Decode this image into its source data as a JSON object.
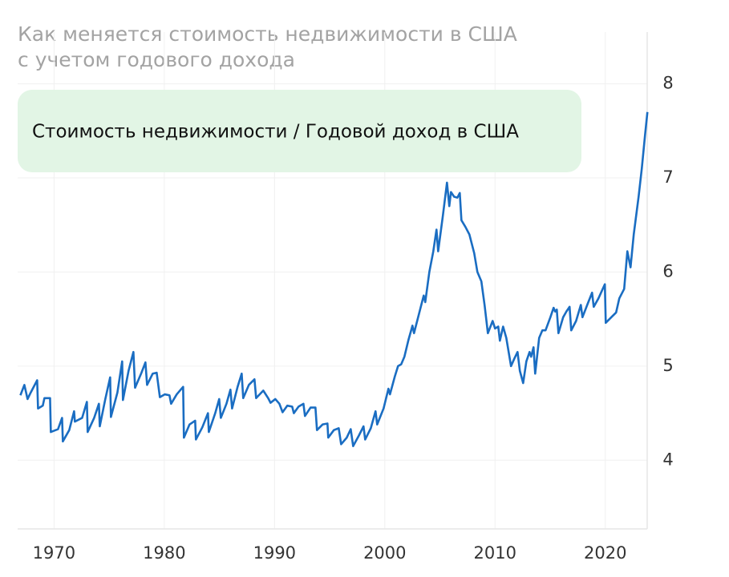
{
  "chart_data": {
    "type": "line",
    "title": "Как меняется стоимость недвижимости в США",
    "subtitle": "с учетом годового дохода",
    "x": [
      1966.95,
      1967.31,
      1967.6,
      1967.89,
      1968.47,
      1968.55,
      1968.98,
      1969.13,
      1969.64,
      1969.71,
      1970.36,
      1970.73,
      1970.8,
      1971.38,
      1971.82,
      1971.89,
      1972.55,
      1972.98,
      1973.05,
      1973.64,
      1974.07,
      1974.15,
      1974.65,
      1975.09,
      1975.16,
      1975.75,
      1976.18,
      1976.25,
      1976.76,
      1977.2,
      1977.35,
      1977.93,
      1978.29,
      1978.44,
      1978.95,
      1979.31,
      1979.6,
      1980.04,
      1980.47,
      1980.62,
      1981.13,
      1981.71,
      1981.78,
      1982.29,
      1982.8,
      1982.87,
      1983.45,
      1983.96,
      1984.04,
      1984.62,
      1984.98,
      1985.13,
      1985.64,
      1986.0,
      1986.15,
      1986.65,
      1987.02,
      1987.16,
      1987.67,
      1988.18,
      1988.33,
      1988.98,
      1989.42,
      1989.64,
      1990.07,
      1990.44,
      1990.73,
      1991.16,
      1991.6,
      1991.75,
      1992.18,
      1992.62,
      1992.76,
      1993.27,
      1993.71,
      1993.85,
      1994.36,
      1994.8,
      1994.87,
      1995.38,
      1995.82,
      1996.04,
      1996.55,
      1996.91,
      1997.13,
      1997.64,
      1998.07,
      1998.22,
      1998.73,
      1999.16,
      1999.31,
      1999.89,
      2000.33,
      2000.47,
      2000.91,
      2001.2,
      2001.49,
      2001.78,
      2002.15,
      2002.51,
      2002.65,
      2003.09,
      2003.53,
      2003.67,
      2004.04,
      2004.4,
      2004.69,
      2004.84,
      2005.27,
      2005.64,
      2005.85,
      2006.0,
      2006.29,
      2006.58,
      2006.8,
      2006.95,
      2007.31,
      2007.67,
      2008.11,
      2008.4,
      2008.76,
      2009.05,
      2009.35,
      2009.78,
      2010.0,
      2010.29,
      2010.44,
      2010.73,
      2011.02,
      2011.45,
      2011.75,
      2012.04,
      2012.25,
      2012.55,
      2012.84,
      2013.13,
      2013.27,
      2013.49,
      2013.64,
      2014.0,
      2014.29,
      2014.58,
      2015.02,
      2015.31,
      2015.45,
      2015.6,
      2015.75,
      2016.18,
      2016.47,
      2016.76,
      2016.91,
      2017.35,
      2017.78,
      2017.93,
      2018.36,
      2018.8,
      2018.95,
      2019.38,
      2019.96,
      2020.04,
      2020.55,
      2020.98,
      2021.27,
      2021.71,
      2022.0,
      2022.29,
      2022.58,
      2023.02,
      2023.31,
      2023.6,
      2023.82
    ],
    "series": [
      {
        "name": "Стоимость недвижимости /  Годовой доход в США",
        "color": "#1a6dc2",
        "values": [
          4.69,
          4.8,
          4.65,
          4.72,
          4.85,
          4.55,
          4.58,
          4.66,
          4.66,
          4.3,
          4.33,
          4.45,
          4.2,
          4.32,
          4.52,
          4.41,
          4.45,
          4.62,
          4.3,
          4.45,
          4.6,
          4.36,
          4.65,
          4.88,
          4.46,
          4.72,
          5.05,
          4.64,
          4.95,
          5.15,
          4.77,
          4.93,
          5.04,
          4.8,
          4.92,
          4.93,
          4.67,
          4.7,
          4.69,
          4.6,
          4.7,
          4.78,
          4.24,
          4.38,
          4.42,
          4.22,
          4.35,
          4.5,
          4.3,
          4.5,
          4.65,
          4.45,
          4.6,
          4.75,
          4.55,
          4.78,
          4.92,
          4.66,
          4.8,
          4.86,
          4.66,
          4.74,
          4.66,
          4.61,
          4.65,
          4.6,
          4.51,
          4.58,
          4.57,
          4.5,
          4.57,
          4.6,
          4.47,
          4.56,
          4.56,
          4.32,
          4.38,
          4.39,
          4.24,
          4.32,
          4.34,
          4.17,
          4.24,
          4.33,
          4.15,
          4.26,
          4.36,
          4.22,
          4.34,
          4.52,
          4.38,
          4.55,
          4.76,
          4.7,
          4.89,
          5.0,
          5.02,
          5.1,
          5.28,
          5.43,
          5.35,
          5.55,
          5.75,
          5.68,
          6.0,
          6.22,
          6.45,
          6.22,
          6.6,
          6.95,
          6.7,
          6.85,
          6.8,
          6.79,
          6.84,
          6.55,
          6.48,
          6.4,
          6.2,
          6.0,
          5.9,
          5.65,
          5.35,
          5.48,
          5.4,
          5.42,
          5.27,
          5.42,
          5.3,
          5.0,
          5.08,
          5.15,
          4.95,
          4.82,
          5.05,
          5.15,
          5.1,
          5.2,
          4.92,
          5.3,
          5.38,
          5.38,
          5.52,
          5.62,
          5.58,
          5.6,
          5.35,
          5.52,
          5.58,
          5.63,
          5.38,
          5.48,
          5.65,
          5.52,
          5.65,
          5.78,
          5.63,
          5.72,
          5.87,
          5.46,
          5.52,
          5.57,
          5.72,
          5.82,
          6.22,
          6.05,
          6.4,
          6.8,
          7.1,
          7.45,
          7.7
        ]
      }
    ],
    "xlim": [
      1966.7,
      2023.8
    ],
    "xticks": [
      1970,
      1980,
      1990,
      2000,
      2010,
      2020
    ],
    "ylim": [
      3.27,
      8.55
    ],
    "yticks": [
      4,
      5,
      6,
      7,
      8
    ],
    "grid": true
  }
}
